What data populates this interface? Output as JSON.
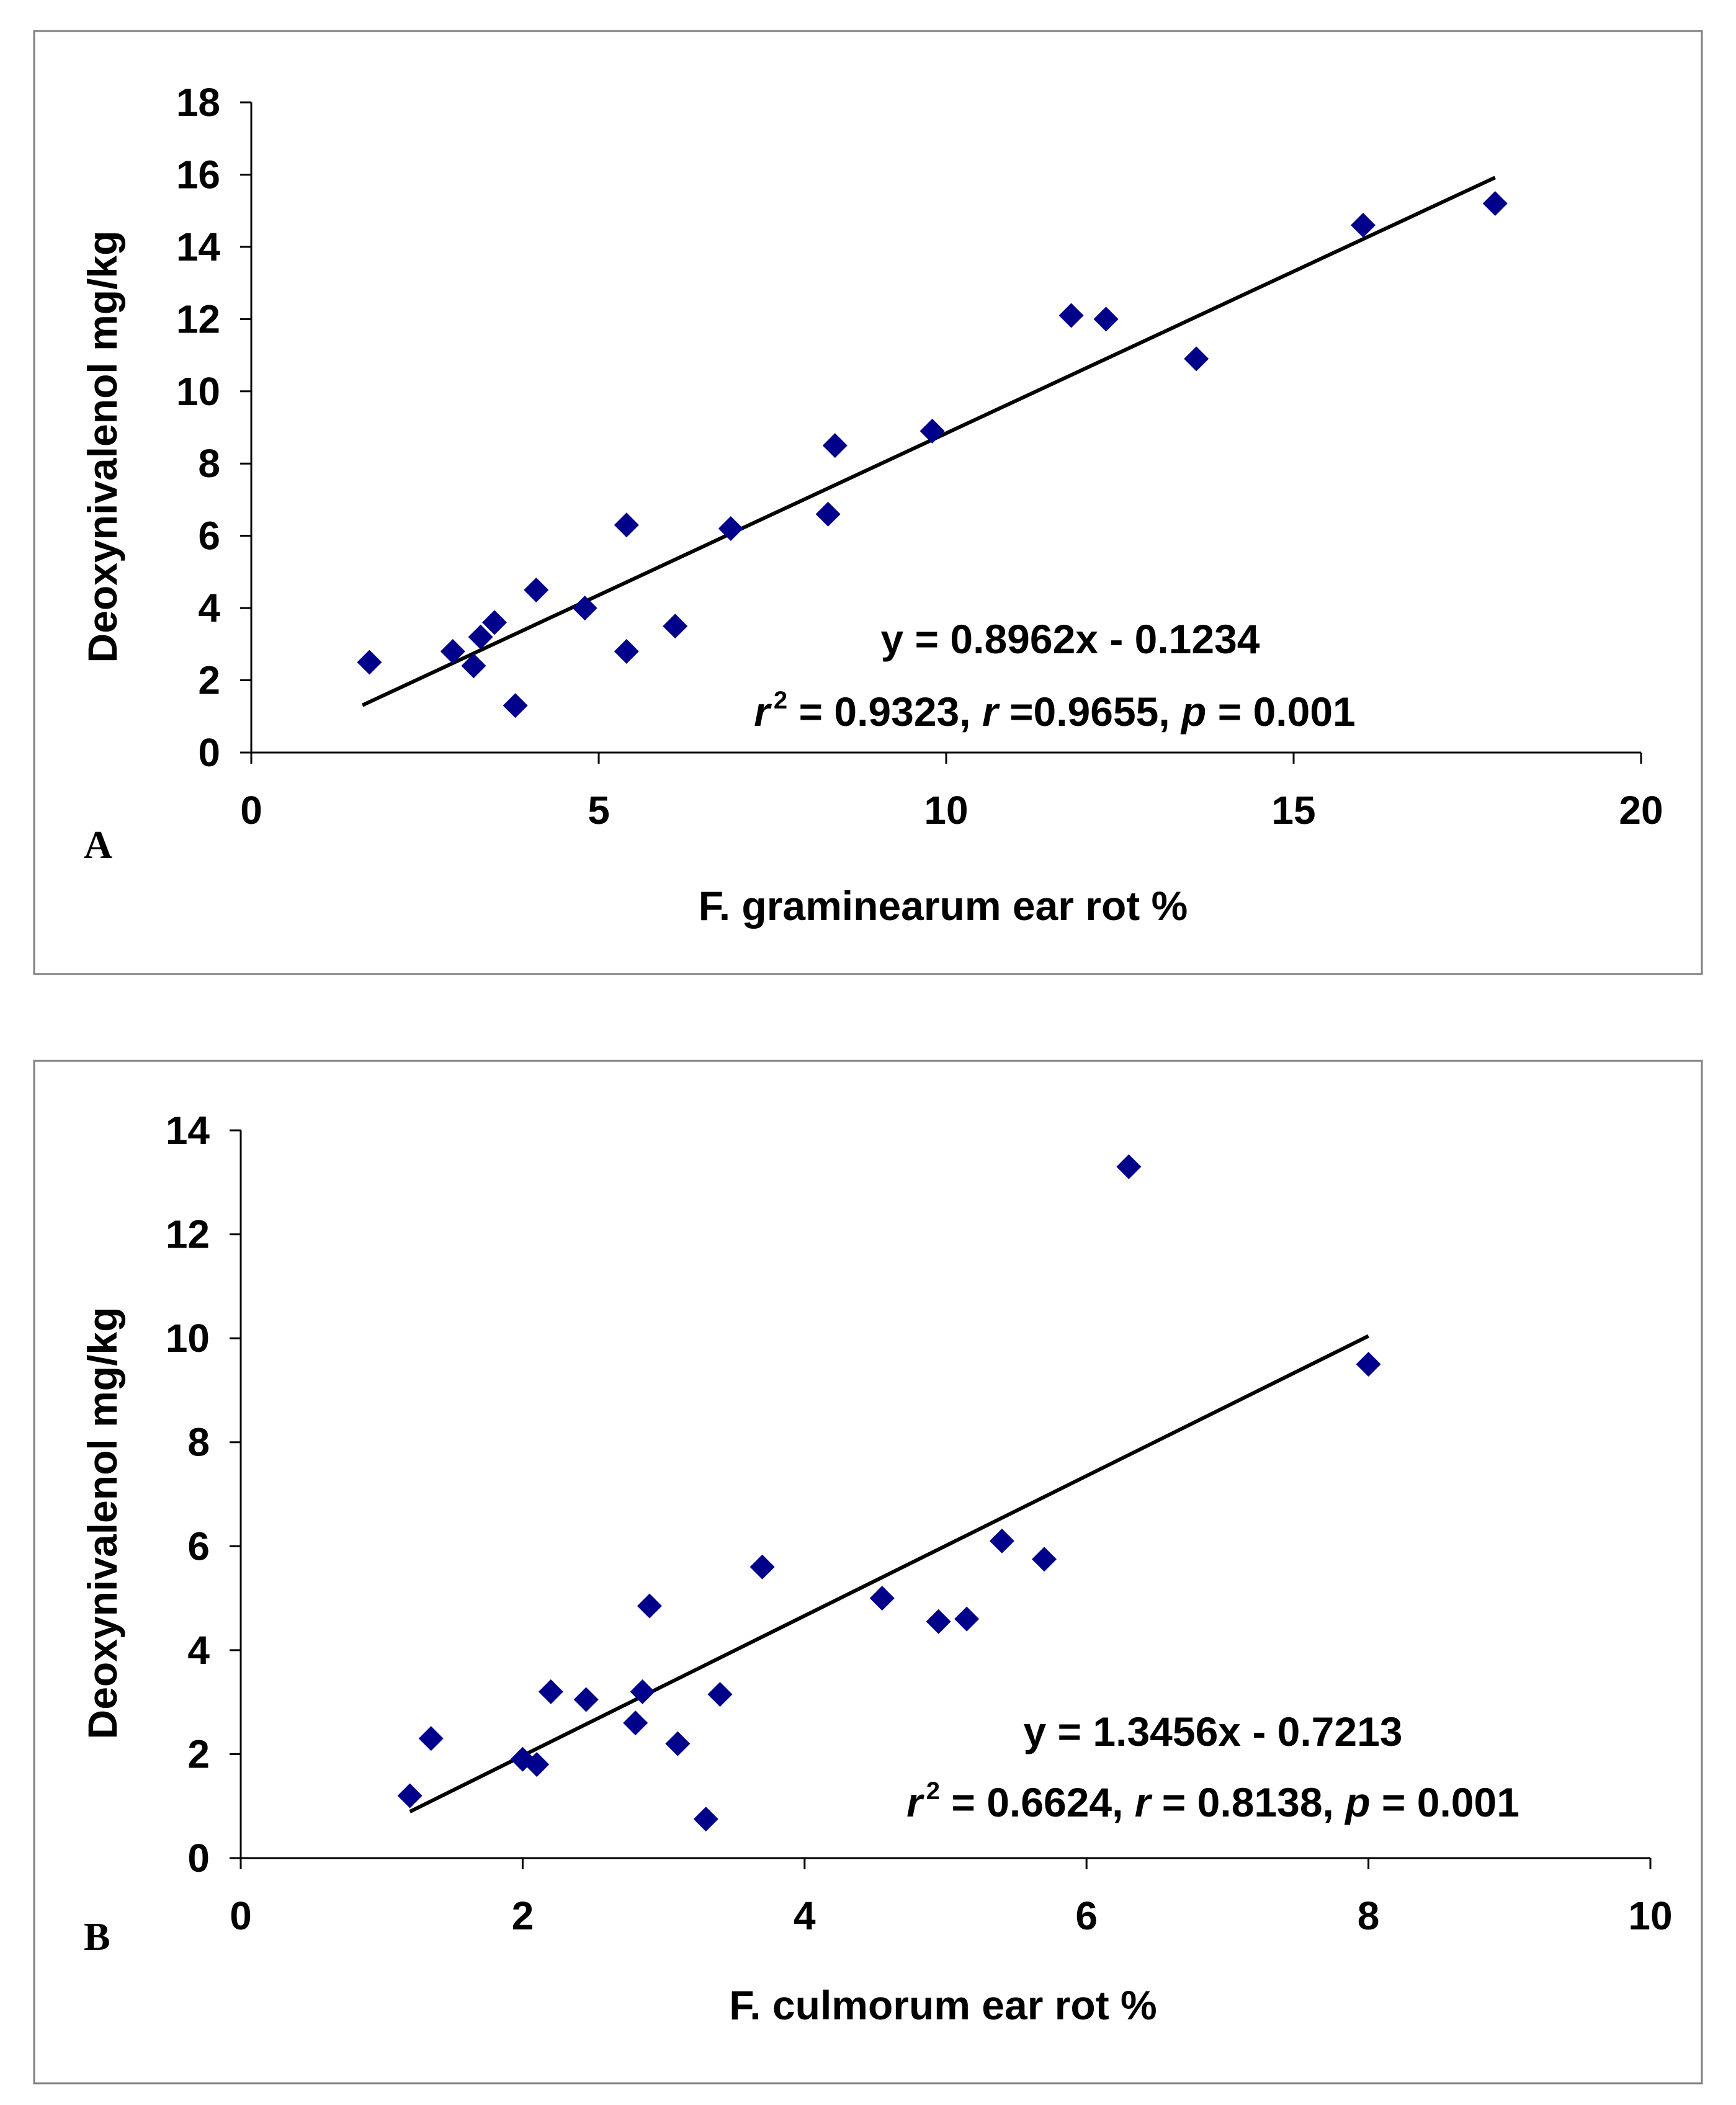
{
  "chart_data": [
    {
      "type": "scatter",
      "panel_label": "A",
      "xlabel": "F. graminearum ear rot %",
      "ylabel": "Deoxynivalenol mg/kg",
      "xlim": [
        0,
        20
      ],
      "ylim": [
        0,
        18
      ],
      "xticks": [
        0,
        5,
        10,
        15,
        20
      ],
      "yticks": [
        0,
        2,
        4,
        6,
        8,
        10,
        12,
        14,
        16,
        18
      ],
      "grid": false,
      "marker_color": "#00008B",
      "points": [
        {
          "x": 1.7,
          "y": 2.5
        },
        {
          "x": 2.9,
          "y": 2.8
        },
        {
          "x": 3.2,
          "y": 2.4
        },
        {
          "x": 3.3,
          "y": 3.2
        },
        {
          "x": 3.5,
          "y": 3.6
        },
        {
          "x": 3.8,
          "y": 1.3
        },
        {
          "x": 4.1,
          "y": 4.5
        },
        {
          "x": 4.8,
          "y": 4.0
        },
        {
          "x": 5.4,
          "y": 6.3
        },
        {
          "x": 5.4,
          "y": 2.8
        },
        {
          "x": 6.1,
          "y": 3.5
        },
        {
          "x": 6.9,
          "y": 6.2
        },
        {
          "x": 8.3,
          "y": 6.6
        },
        {
          "x": 8.4,
          "y": 8.5
        },
        {
          "x": 9.8,
          "y": 8.9
        },
        {
          "x": 11.8,
          "y": 12.1
        },
        {
          "x": 12.3,
          "y": 12.0
        },
        {
          "x": 13.6,
          "y": 10.9
        },
        {
          "x": 16.0,
          "y": 14.6
        },
        {
          "x": 17.9,
          "y": 15.2
        }
      ],
      "trendline": {
        "slope": 0.8962,
        "intercept": -0.1234,
        "x_start": 1.6,
        "x_end": 17.9
      },
      "equation": "y = 0.8962x - 0.1234",
      "stats": {
        "r2_symbol": "r",
        "r2_sup": "2",
        "r2_text": " = 0.9323, ",
        "r_symbol": "r",
        "r_text": " =0.9655, ",
        "p_symbol": "p",
        "p_text": " = 0.001"
      }
    },
    {
      "type": "scatter",
      "panel_label": "B",
      "xlabel": "F. culmorum ear rot %",
      "ylabel": "Deoxynivalenol mg/kg",
      "xlim": [
        0,
        10
      ],
      "ylim": [
        0,
        14
      ],
      "xticks": [
        0,
        2,
        4,
        6,
        8,
        10
      ],
      "yticks": [
        0,
        2,
        4,
        6,
        8,
        10,
        12,
        14
      ],
      "grid": false,
      "marker_color": "#00008B",
      "points": [
        {
          "x": 1.2,
          "y": 1.2
        },
        {
          "x": 1.35,
          "y": 2.3
        },
        {
          "x": 2.0,
          "y": 1.9
        },
        {
          "x": 2.1,
          "y": 1.8
        },
        {
          "x": 2.2,
          "y": 3.2
        },
        {
          "x": 2.45,
          "y": 3.05
        },
        {
          "x": 2.8,
          "y": 2.6
        },
        {
          "x": 2.85,
          "y": 3.2
        },
        {
          "x": 2.9,
          "y": 4.85
        },
        {
          "x": 3.1,
          "y": 2.2
        },
        {
          "x": 3.3,
          "y": 0.75
        },
        {
          "x": 3.4,
          "y": 3.15
        },
        {
          "x": 3.7,
          "y": 5.6
        },
        {
          "x": 4.55,
          "y": 5.0
        },
        {
          "x": 4.95,
          "y": 4.55
        },
        {
          "x": 5.15,
          "y": 4.6
        },
        {
          "x": 5.4,
          "y": 6.1
        },
        {
          "x": 5.7,
          "y": 5.75
        },
        {
          "x": 6.3,
          "y": 13.3
        },
        {
          "x": 8.0,
          "y": 9.5
        }
      ],
      "trendline": {
        "slope": 1.3456,
        "intercept": -0.7213,
        "x_start": 1.2,
        "x_end": 8.0
      },
      "equation": "y = 1.3456x - 0.7213",
      "stats": {
        "r2_symbol": "r",
        "r2_sup": "2",
        "r2_text": " = 0.6624, ",
        "r_symbol": "r",
        "r_text": " = 0.8138, ",
        "p_symbol": "p",
        "p_text": " = 0.001"
      }
    }
  ]
}
